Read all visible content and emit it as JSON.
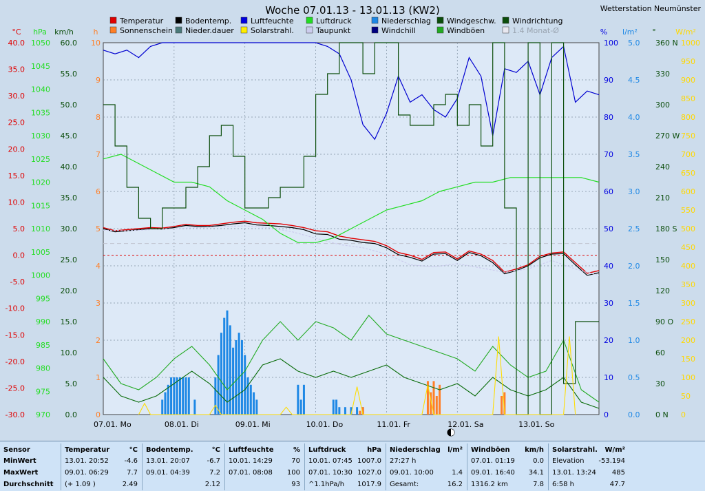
{
  "title": "Woche 07.01.13 - 13.01.13 (KW2)",
  "station": "Wetterstation Neumünster",
  "legend": [
    {
      "label": "Temperatur",
      "color": "#e00000"
    },
    {
      "label": "Bodentemp.",
      "color": "#000000"
    },
    {
      "label": "Luftfeuchte",
      "color": "#0000e0"
    },
    {
      "label": "Luftdruck",
      "color": "#22dd22"
    },
    {
      "label": "Niederschlag",
      "color": "#1e88e5"
    },
    {
      "label": "Windgeschw.",
      "color": "#0b4d0b"
    },
    {
      "label": "Windrichtung",
      "color": "#0b4d0b"
    },
    {
      "label": "Sonnenschein",
      "color": "#ff7f27"
    },
    {
      "label": "Nieder.dauer",
      "color": "#4a7a7a"
    },
    {
      "label": "Solarstrahl.",
      "color": "#ffee00"
    },
    {
      "label": "Taupunkt",
      "color": "#ccccee"
    },
    {
      "label": "Windchill",
      "color": "#000080"
    },
    {
      "label": "Windböen",
      "color": "#22aa22"
    },
    {
      "label": "1.4 Monat-Ø",
      "color": "#e8e8f0"
    }
  ],
  "colors": {
    "plot_bg": "#dde9f7",
    "page_bg": "#ccdcec",
    "grid": "#7d8fa0",
    "temp_axis": "#e00000",
    "pressure_axis": "#22dd22",
    "wind_axis": "#0b4d0b",
    "hours_axis": "#ff7f27",
    "humidity_axis": "#0000e0",
    "rain_axis": "#1e88e5",
    "winddir_axis": "#0b4d0b",
    "solar_axis": "#ffd800"
  },
  "axes": {
    "temp": {
      "unit": "°C",
      "ticks": [
        "40.0",
        "35.0",
        "30.0",
        "25.0",
        "20.0",
        "15.0",
        "10.0",
        "5.0",
        "0.0",
        "-5.0",
        "-10.0",
        "-15.0",
        "-20.0",
        "-25.0",
        "-30.0"
      ]
    },
    "pressure": {
      "unit": "hPa",
      "ticks": [
        "1050",
        "1045",
        "1040",
        "1035",
        "1030",
        "1025",
        "1020",
        "1015",
        "1010",
        "1005",
        "1000",
        "995",
        "990",
        "985",
        "980",
        "975",
        "970"
      ]
    },
    "wind": {
      "unit": "km/h",
      "ticks": [
        "60.0",
        "55.0",
        "50.0",
        "45.0",
        "40.0",
        "35.0",
        "30.0",
        "25.0",
        "20.0",
        "15.0",
        "10.0",
        "5.0",
        "0.0"
      ]
    },
    "hours": {
      "unit": "h",
      "ticks": [
        "10",
        "9",
        "8",
        "7",
        "6",
        "5",
        "4",
        "3",
        "2",
        "1",
        "0"
      ]
    },
    "humidity": {
      "unit": "%",
      "ticks": [
        "100",
        "90",
        "80",
        "70",
        "60",
        "50",
        "40",
        "30",
        "20",
        "10",
        "0"
      ]
    },
    "rain": {
      "unit": "l/m²",
      "ticks": [
        "5.0",
        "4.5",
        "4.0",
        "3.5",
        "3.0",
        "2.5",
        "2.0",
        "1.5",
        "1.0",
        "0.5",
        "0.0"
      ]
    },
    "winddir": {
      "unit": "°",
      "ticks": [
        "360 N",
        "330",
        "300",
        "270 W",
        "240",
        "210",
        "180 S",
        "150",
        "120",
        "90 O",
        "60",
        "30",
        "0 N"
      ]
    },
    "solar": {
      "unit": "W/m²",
      "ticks": [
        "1000",
        "950",
        "900",
        "850",
        "800",
        "750",
        "700",
        "650",
        "600",
        "550",
        "500",
        "450",
        "400",
        "350",
        "300",
        "250",
        "200",
        "150",
        "100",
        "50",
        "0"
      ]
    },
    "days": [
      "07.01. Mo",
      "08.01. Di",
      "09.01. Mi",
      "10.01. Do",
      "11.01. Fr",
      "12.01. Sa",
      "13.01. So"
    ]
  },
  "chart_data": {
    "type": "line",
    "title": "Woche 07.01.13 - 13.01.13 (KW2)",
    "x_unit": "hours since 07.01. 00:00",
    "xlim": [
      0,
      168
    ],
    "ylim_temp": [
      -30,
      40
    ],
    "ylim_pressure": [
      970,
      1050
    ],
    "ylim_wind": [
      0,
      60
    ],
    "ylim_humidity": [
      0,
      100
    ],
    "ylim_rain": [
      0,
      5
    ],
    "ylim_winddir": [
      0,
      360
    ],
    "ylim_solar": [
      0,
      1000
    ],
    "series": [
      {
        "name": "Temperatur",
        "axis": "temp",
        "x": [
          0,
          4,
          8,
          12,
          16,
          20,
          24,
          28,
          32,
          36,
          40,
          44,
          48,
          52,
          56,
          60,
          64,
          68,
          72,
          76,
          80,
          84,
          88,
          92,
          96,
          100,
          104,
          108,
          112,
          116,
          120,
          124,
          128,
          132,
          136,
          140,
          144,
          148,
          152,
          156,
          160,
          164,
          168
        ],
        "values": [
          5.2,
          4.6,
          4.8,
          5.0,
          5.2,
          5.1,
          5.4,
          5.8,
          5.6,
          5.6,
          5.9,
          6.2,
          6.4,
          6.1,
          6.0,
          5.9,
          5.6,
          5.2,
          4.6,
          4.4,
          3.6,
          3.2,
          2.9,
          2.6,
          1.8,
          0.5,
          0.0,
          -0.8,
          0.5,
          0.6,
          -0.7,
          0.8,
          0.2,
          -1.0,
          -3.2,
          -2.6,
          -1.8,
          -0.2,
          0.4,
          0.6,
          -1.4,
          -3.4,
          -2.9
        ]
      },
      {
        "name": "Bodentemp.",
        "axis": "temp",
        "x": [
          0,
          4,
          8,
          12,
          16,
          20,
          24,
          28,
          32,
          36,
          40,
          44,
          48,
          52,
          56,
          60,
          64,
          68,
          72,
          76,
          80,
          84,
          88,
          92,
          96,
          100,
          104,
          108,
          112,
          116,
          120,
          124,
          128,
          132,
          136,
          140,
          144,
          148,
          152,
          156,
          160,
          164,
          168
        ],
        "values": [
          5.0,
          4.4,
          4.6,
          4.8,
          5.0,
          4.9,
          5.2,
          5.6,
          5.4,
          5.4,
          5.6,
          5.9,
          6.1,
          5.7,
          5.6,
          5.4,
          5.2,
          4.8,
          4.0,
          3.9,
          3.0,
          2.8,
          2.4,
          2.2,
          1.4,
          0.1,
          -0.4,
          -1.1,
          0.2,
          0.3,
          -1.0,
          0.5,
          -0.1,
          -1.4,
          -3.5,
          -2.9,
          -2.0,
          -0.5,
          0.2,
          0.3,
          -1.8,
          -3.8,
          -3.3
        ]
      },
      {
        "name": "Taupunkt",
        "axis": "temp",
        "x": [
          0,
          8,
          16,
          24,
          32,
          40,
          48,
          56,
          64,
          72,
          80,
          88,
          96,
          104,
          112,
          120,
          128,
          136,
          144,
          152,
          160,
          168
        ],
        "values": [
          4.7,
          4.6,
          4.8,
          5.0,
          5.2,
          5.4,
          5.5,
          5.2,
          4.4,
          3.2,
          2.0,
          1.4,
          0.2,
          -1.8,
          -2.2,
          -1.6,
          -2.4,
          -3.2,
          -2.6,
          -1.0,
          -2.6,
          -3.8
        ]
      },
      {
        "name": "Luftfeuchte",
        "axis": "humidity",
        "x": [
          0,
          4,
          8,
          12,
          16,
          20,
          24,
          28,
          32,
          36,
          40,
          44,
          48,
          52,
          56,
          60,
          64,
          68,
          72,
          76,
          80,
          84,
          88,
          92,
          96,
          100,
          104,
          108,
          112,
          116,
          120,
          124,
          128,
          132,
          136,
          140,
          144,
          148,
          152,
          156,
          160,
          164,
          168
        ],
        "values": [
          98,
          97,
          98,
          96,
          99,
          100,
          100,
          100,
          100,
          100,
          100,
          100,
          100,
          100,
          100,
          100,
          100,
          100,
          100,
          99,
          97,
          90,
          78,
          74,
          81,
          91,
          84,
          86,
          82,
          80,
          85,
          96,
          91,
          75,
          93,
          92,
          95,
          86,
          96,
          99,
          84,
          87,
          86
        ]
      },
      {
        "name": "Luftdruck",
        "axis": "pressure",
        "x": [
          0,
          6,
          12,
          18,
          24,
          30,
          36,
          42,
          48,
          54,
          60,
          66,
          72,
          78,
          84,
          90,
          96,
          102,
          108,
          114,
          120,
          126,
          132,
          138,
          144,
          150,
          156,
          162,
          168
        ],
        "values": [
          1025,
          1026,
          1024,
          1022,
          1020,
          1020,
          1019,
          1016,
          1014,
          1012,
          1009,
          1007,
          1007,
          1008,
          1010,
          1012,
          1014,
          1015,
          1016,
          1018,
          1019,
          1020,
          1020,
          1021,
          1021,
          1021,
          1021,
          1021,
          1020
        ]
      },
      {
        "name": "Windgeschw.",
        "axis": "wind",
        "x": [
          0,
          6,
          12,
          18,
          24,
          30,
          36,
          42,
          48,
          54,
          60,
          66,
          72,
          78,
          84,
          90,
          96,
          102,
          108,
          114,
          120,
          126,
          132,
          138,
          144,
          150,
          156,
          162,
          168
        ],
        "values": [
          6,
          3,
          2,
          3,
          5,
          7,
          5,
          2,
          4,
          8,
          9,
          7,
          6,
          7,
          6,
          7,
          8,
          6,
          5,
          4,
          5,
          3,
          6,
          4,
          3,
          4,
          6,
          2,
          1
        ]
      },
      {
        "name": "Windböen",
        "axis": "wind",
        "x": [
          0,
          6,
          12,
          18,
          24,
          30,
          36,
          42,
          48,
          54,
          60,
          66,
          72,
          78,
          84,
          90,
          96,
          102,
          108,
          114,
          120,
          126,
          132,
          138,
          144,
          150,
          156,
          162,
          168
        ],
        "values": [
          9,
          5,
          4,
          6,
          9,
          11,
          8,
          4,
          7,
          12,
          15,
          12,
          15,
          14,
          12,
          16,
          13,
          12,
          11,
          10,
          9,
          7,
          11,
          8,
          6,
          7,
          12,
          4,
          2
        ]
      },
      {
        "name": "Windrichtung",
        "axis": "winddir",
        "x": [
          0,
          4,
          8,
          12,
          16,
          20,
          24,
          28,
          32,
          36,
          40,
          44,
          48,
          52,
          56,
          60,
          64,
          68,
          72,
          76,
          80,
          84,
          88,
          92,
          96,
          100,
          104,
          108,
          112,
          116,
          120,
          124,
          128,
          132,
          136,
          140,
          144,
          148,
          152,
          156,
          160,
          164,
          168
        ],
        "values": [
          300,
          260,
          220,
          190,
          180,
          200,
          200,
          220,
          240,
          270,
          280,
          250,
          200,
          200,
          210,
          220,
          220,
          250,
          310,
          330,
          360,
          360,
          330,
          360,
          360,
          290,
          280,
          280,
          300,
          310,
          280,
          300,
          260,
          360,
          200,
          0,
          360,
          0,
          360,
          30,
          90,
          90,
          90
        ]
      },
      {
        "name": "Solarstrahl.",
        "axis": "solar",
        "x": [
          12,
          14,
          16,
          36,
          38,
          40,
          60,
          62,
          64,
          84,
          86,
          88,
          108,
          110,
          112,
          132,
          134,
          136,
          156,
          158,
          160
        ],
        "values": [
          0,
          30,
          0,
          0,
          25,
          0,
          0,
          20,
          0,
          0,
          75,
          0,
          0,
          80,
          0,
          0,
          210,
          0,
          0,
          210,
          0
        ]
      }
    ],
    "bars": [
      {
        "name": "Niederschlag",
        "axis": "rain",
        "x": [
          20,
          21,
          22,
          23,
          24,
          25,
          26,
          27,
          28,
          29,
          31,
          38,
          39,
          40,
          41,
          42,
          43,
          44,
          45,
          46,
          47,
          48,
          49,
          50,
          51,
          52,
          66,
          67,
          68,
          78,
          79,
          80,
          82,
          84,
          86,
          88
        ],
        "values": [
          0.2,
          0.3,
          0.4,
          0.5,
          0.5,
          0.5,
          0.5,
          0.5,
          0.5,
          0.5,
          0.2,
          0.5,
          0.8,
          1.1,
          1.3,
          1.4,
          1.2,
          0.9,
          1.0,
          1.1,
          1.0,
          0.8,
          0.5,
          0.4,
          0.3,
          0.2,
          0.4,
          0.2,
          0.4,
          0.2,
          0.2,
          0.1,
          0.1,
          0.1,
          0.1,
          0.1
        ]
      },
      {
        "name": "Sonnenschein",
        "axis": "hours",
        "x": [
          87,
          88,
          110,
          111,
          112,
          113,
          114,
          135,
          136
        ],
        "values": [
          0.1,
          0.2,
          0.9,
          0.6,
          0.9,
          0.5,
          0.8,
          0.5,
          0.6
        ]
      }
    ]
  },
  "stats": {
    "headers": [
      {
        "title": "Sensor",
        "unit": ""
      },
      {
        "title": "Temperatur",
        "unit": "°C"
      },
      {
        "title": "Bodentemp.",
        "unit": "°C"
      },
      {
        "title": "Luftfeuchte",
        "unit": "%"
      },
      {
        "title": "Luftdruck",
        "unit": "hPa"
      },
      {
        "title": "Niederschlag",
        "unit": "l/m²"
      },
      {
        "title": "Windböen",
        "unit": "km/h"
      },
      {
        "title": "Solarstrahl.",
        "unit": "W/m²"
      }
    ],
    "row_labels": [
      "MinWert",
      "MaxWert",
      "Durchschnitt"
    ],
    "rows": [
      [
        [
          "13.01.  20:52",
          "-4.6"
        ],
        [
          "13.01.  20:07",
          "-6.7"
        ],
        [
          "10.01.  14:29",
          "70"
        ],
        [
          "10.01.  07:45",
          "1007.0"
        ],
        [
          "27:27 h",
          ""
        ],
        [
          "07.01.  01:19",
          "0.0"
        ],
        [
          "Elevation",
          "-53.194"
        ]
      ],
      [
        [
          "09.01.  06:29",
          "7.7"
        ],
        [
          "09.01.  04:39",
          "7.2"
        ],
        [
          "07.01.  08:08",
          "100"
        ],
        [
          "07.01.  10:30",
          "1027.0"
        ],
        [
          "09.01.  10:00",
          "1.4"
        ],
        [
          "09.01.  16:40",
          "34.1"
        ],
        [
          "13.01.  13:24",
          "485"
        ]
      ],
      [
        [
          "(+ 1.09 )",
          "2.49"
        ],
        [
          "",
          "2.12"
        ],
        [
          "",
          "93"
        ],
        [
          "^1.1hPa/h",
          "1017.9"
        ],
        [
          "Gesamt:",
          "16.2"
        ],
        [
          "1316.2 km",
          "7.8"
        ],
        [
          "6:58 h",
          "47.7"
        ]
      ]
    ]
  }
}
